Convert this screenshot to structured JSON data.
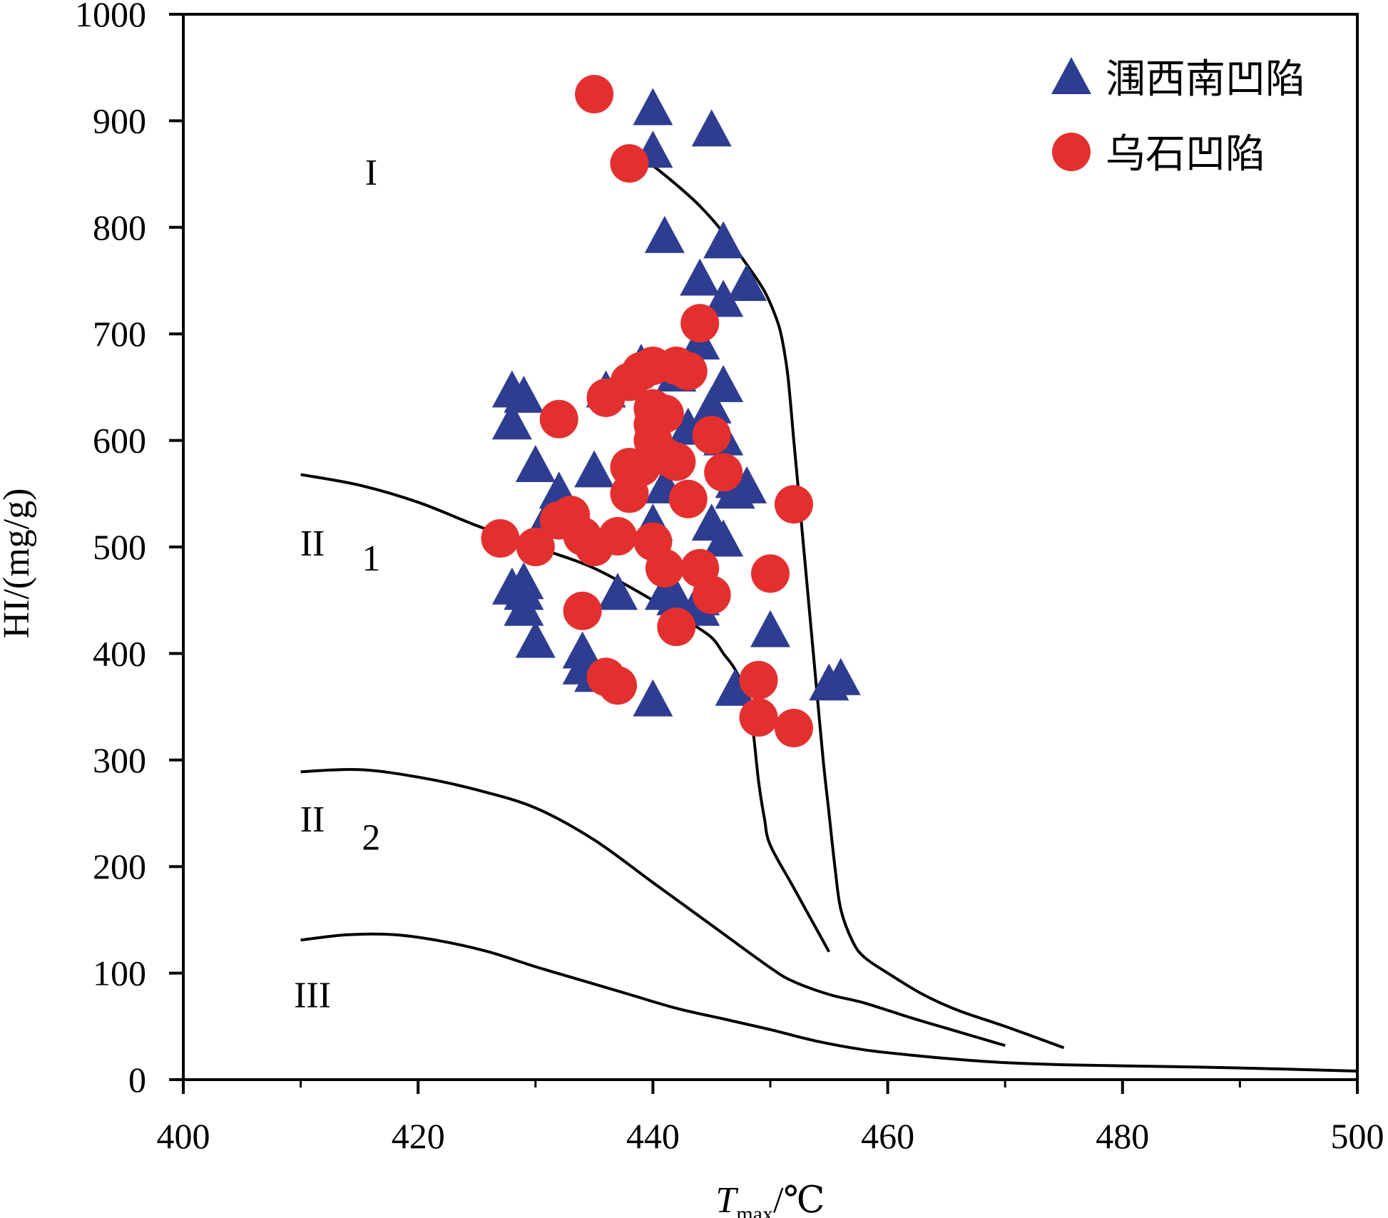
{
  "chart_data": {
    "type": "scatter",
    "xlabel": {
      "main": "T",
      "sub": "max",
      "unit": "/℃"
    },
    "ylabel": "HI/(mg/g)",
    "xlim": [
      400,
      500
    ],
    "ylim": [
      0,
      1000
    ],
    "x_ticks": [
      "400",
      "420",
      "440",
      "460",
      "480",
      "500"
    ],
    "y_ticks": [
      "0",
      "100",
      "200",
      "300",
      "400",
      "500",
      "600",
      "700",
      "800",
      "900",
      "1000"
    ],
    "grid": false,
    "legend_position": "top-right",
    "region_labels": [
      {
        "text": "I",
        "x": 416,
        "y": 840
      },
      {
        "text": "II",
        "x": 411,
        "y": 492
      },
      {
        "text": "1",
        "x": 416,
        "y": 478
      },
      {
        "text": "II",
        "x": 411,
        "y": 233
      },
      {
        "text": "2",
        "x": 416,
        "y": 216
      },
      {
        "text": "III",
        "x": 411,
        "y": 68
      }
    ],
    "curves": [
      {
        "id": "boundary-I-II1",
        "points": [
          [
            440,
            858
          ],
          [
            442,
            840
          ],
          [
            444,
            820
          ],
          [
            446,
            795
          ],
          [
            448,
            765
          ],
          [
            449.5,
            740
          ],
          [
            450.5,
            715
          ],
          [
            451,
            695
          ],
          [
            451.5,
            660
          ],
          [
            452,
            600
          ],
          [
            452.5,
            540
          ],
          [
            453,
            480
          ],
          [
            453.5,
            420
          ],
          [
            454,
            360
          ],
          [
            454.5,
            300
          ],
          [
            455,
            250
          ],
          [
            455.5,
            200
          ],
          [
            456,
            160
          ],
          [
            457,
            130
          ],
          [
            458,
            115
          ],
          [
            460,
            100
          ],
          [
            463,
            80
          ],
          [
            466,
            65
          ],
          [
            470,
            50
          ],
          [
            475,
            30
          ]
        ]
      },
      {
        "id": "boundary-II1-II2",
        "points": [
          [
            410,
            568
          ],
          [
            415,
            558
          ],
          [
            420,
            542
          ],
          [
            425,
            520
          ],
          [
            430,
            500
          ],
          [
            435,
            480
          ],
          [
            440,
            450
          ],
          [
            443,
            430
          ],
          [
            445,
            415
          ],
          [
            446,
            400
          ],
          [
            447,
            385
          ],
          [
            448,
            360
          ],
          [
            448.5,
            330
          ],
          [
            449,
            280
          ],
          [
            449.5,
            245
          ],
          [
            450,
            220
          ],
          [
            452,
            180
          ],
          [
            455,
            120
          ]
        ]
      },
      {
        "id": "boundary-II2-III",
        "points": [
          [
            410,
            289
          ],
          [
            415,
            291
          ],
          [
            420,
            284
          ],
          [
            425,
            272
          ],
          [
            430,
            255
          ],
          [
            435,
            225
          ],
          [
            440,
            185
          ],
          [
            445,
            145
          ],
          [
            450,
            105
          ],
          [
            452,
            92
          ],
          [
            455,
            80
          ],
          [
            458,
            72
          ],
          [
            462,
            58
          ],
          [
            466,
            45
          ],
          [
            470,
            32
          ]
        ]
      },
      {
        "id": "boundary-III-lower",
        "points": [
          [
            410,
            131
          ],
          [
            414,
            136
          ],
          [
            418,
            136
          ],
          [
            422,
            130
          ],
          [
            426,
            120
          ],
          [
            430,
            106
          ],
          [
            434,
            93
          ],
          [
            438,
            80
          ],
          [
            442,
            67
          ],
          [
            446,
            57
          ],
          [
            450,
            47
          ],
          [
            454,
            36
          ],
          [
            458,
            28
          ],
          [
            462,
            23
          ],
          [
            466,
            19
          ],
          [
            470,
            16
          ],
          [
            475,
            14
          ],
          [
            480,
            13
          ],
          [
            490,
            11
          ],
          [
            500,
            8
          ]
        ]
      }
    ],
    "series": [
      {
        "name": "涠西南凹陷",
        "marker": "triangle",
        "color": "#2e3d8f",
        "points": [
          [
            428,
            645
          ],
          [
            429,
            640
          ],
          [
            428,
            615
          ],
          [
            430,
            575
          ],
          [
            432,
            550
          ],
          [
            431,
            525
          ],
          [
            429,
            465
          ],
          [
            429,
            455
          ],
          [
            428,
            460
          ],
          [
            429,
            440
          ],
          [
            430,
            410
          ],
          [
            434,
            400
          ],
          [
            434,
            385
          ],
          [
            435,
            378
          ],
          [
            435,
            570
          ],
          [
            436,
            645
          ],
          [
            437,
            455
          ],
          [
            439,
            670
          ],
          [
            440,
            910
          ],
          [
            440,
            870
          ],
          [
            441,
            790
          ],
          [
            442,
            660
          ],
          [
            444,
            750
          ],
          [
            444,
            690
          ],
          [
            445,
            890
          ],
          [
            445,
            520
          ],
          [
            443,
            610
          ],
          [
            444,
            450
          ],
          [
            441,
            455
          ],
          [
            442,
            450
          ],
          [
            444,
            440
          ],
          [
            445,
            630
          ],
          [
            446,
            785
          ],
          [
            446,
            730
          ],
          [
            446,
            650
          ],
          [
            446,
            600
          ],
          [
            446,
            505
          ],
          [
            447,
            560
          ],
          [
            447,
            550
          ],
          [
            448,
            555
          ],
          [
            448,
            745
          ],
          [
            440,
            520
          ],
          [
            441,
            555
          ],
          [
            440,
            355
          ],
          [
            447,
            365
          ],
          [
            450,
            420
          ],
          [
            455,
            370
          ],
          [
            456,
            375
          ]
        ]
      },
      {
        "name": "乌石凹陷",
        "marker": "circle",
        "color": "#e3302f",
        "points": [
          [
            435,
            925
          ],
          [
            438,
            860
          ],
          [
            444,
            710
          ],
          [
            432,
            620
          ],
          [
            436,
            640
          ],
          [
            438,
            655
          ],
          [
            439,
            665
          ],
          [
            440,
            670
          ],
          [
            440,
            630
          ],
          [
            441,
            625
          ],
          [
            440,
            615
          ],
          [
            442,
            670
          ],
          [
            443,
            665
          ],
          [
            440,
            600
          ],
          [
            441,
            585
          ],
          [
            442,
            580
          ],
          [
            438,
            575
          ],
          [
            439,
            575
          ],
          [
            438,
            550
          ],
          [
            443,
            545
          ],
          [
            446,
            570
          ],
          [
            445,
            605
          ],
          [
            452,
            540
          ],
          [
            427,
            508
          ],
          [
            430,
            500
          ],
          [
            432,
            525
          ],
          [
            433,
            530
          ],
          [
            434,
            510
          ],
          [
            435,
            500
          ],
          [
            437,
            510
          ],
          [
            440,
            505
          ],
          [
            441,
            480
          ],
          [
            444,
            480
          ],
          [
            445,
            455
          ],
          [
            450,
            475
          ],
          [
            434,
            440
          ],
          [
            442,
            425
          ],
          [
            436,
            378
          ],
          [
            437,
            370
          ],
          [
            449,
            375
          ],
          [
            449,
            340
          ],
          [
            452,
            330
          ]
        ]
      }
    ]
  }
}
